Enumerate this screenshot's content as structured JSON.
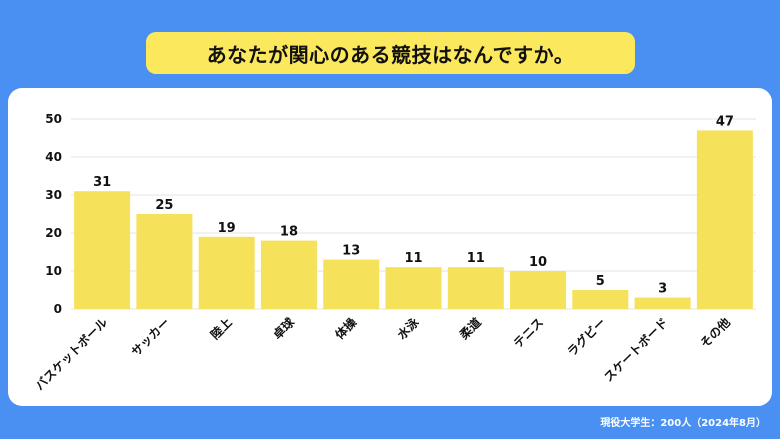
{
  "header": {
    "title": "あなたが関心のある競技はなんですか。"
  },
  "footer": {
    "note": "現役大学生：200人（2024年8月）"
  },
  "colors": {
    "background": "#4a90f2",
    "title_box": "#fbe85c",
    "bar": "#f5e15a",
    "grid": "#e3e3e3"
  },
  "chart_data": {
    "type": "bar",
    "categories": [
      "バスケットボール",
      "サッカー",
      "陸上",
      "卓球",
      "体操",
      "水泳",
      "柔道",
      "テニス",
      "ラグビー",
      "スケートボード",
      "その他"
    ],
    "values": [
      31,
      25,
      19,
      18,
      13,
      11,
      11,
      10,
      5,
      3,
      47
    ],
    "ylim": [
      0,
      50
    ],
    "yticks": [
      0,
      10,
      20,
      30,
      40,
      50
    ],
    "grid": true,
    "data_labels": true
  }
}
